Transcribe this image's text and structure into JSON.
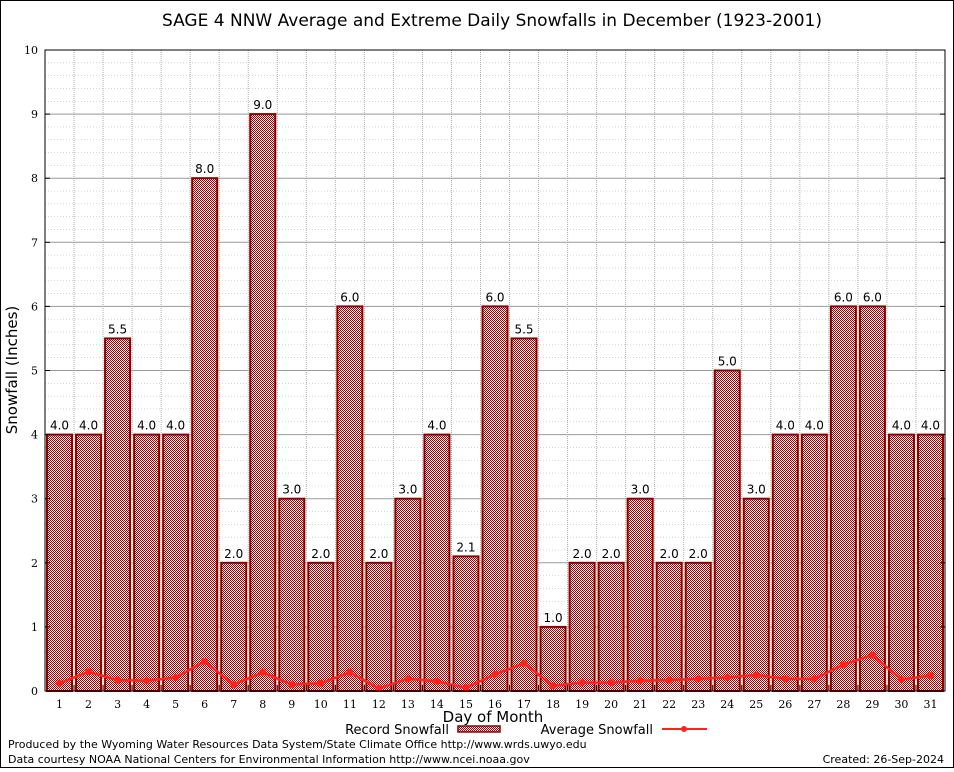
{
  "chart_data": {
    "type": "bar",
    "title": "SAGE 4 NNW Average and Extreme Daily Snowfalls in December (1923-2001)",
    "xlabel": "Day of Month",
    "ylabel": "Snowfall (Inches)",
    "ylim": [
      0,
      10
    ],
    "yticks": [
      "0",
      "1",
      "2",
      "3",
      "4",
      "5",
      "6",
      "7",
      "8",
      "9",
      "10"
    ],
    "categories": [
      "1",
      "2",
      "3",
      "4",
      "5",
      "6",
      "7",
      "8",
      "9",
      "10",
      "11",
      "12",
      "13",
      "14",
      "15",
      "16",
      "17",
      "18",
      "19",
      "20",
      "21",
      "22",
      "23",
      "24",
      "25",
      "26",
      "27",
      "28",
      "29",
      "30",
      "31"
    ],
    "series": [
      {
        "name": "Record Snowfall",
        "type": "bar",
        "color": "#8b0000",
        "values": [
          4.0,
          4.0,
          5.5,
          4.0,
          4.0,
          8.0,
          2.0,
          9.0,
          3.0,
          2.0,
          6.0,
          2.0,
          3.0,
          4.0,
          2.1,
          6.0,
          5.5,
          1.0,
          2.0,
          2.0,
          3.0,
          2.0,
          2.0,
          5.0,
          3.0,
          4.0,
          4.0,
          6.0,
          6.0,
          4.0,
          4.0
        ],
        "labels": [
          "4.0",
          "4.0",
          "5.5",
          "4.0",
          "4.0",
          "8.0",
          "2.0",
          "9.0",
          "3.0",
          "2.0",
          "6.0",
          "2.0",
          "3.0",
          "4.0",
          "2.1",
          "6.0",
          "5.5",
          "1.0",
          "2.0",
          "2.0",
          "3.0",
          "2.0",
          "2.0",
          "5.0",
          "3.0",
          "4.0",
          "4.0",
          "6.0",
          "6.0",
          "4.0",
          "4.0"
        ]
      },
      {
        "name": "Average Snowfall",
        "type": "line",
        "color": "#ff2020",
        "values": [
          0.12,
          0.3,
          0.17,
          0.16,
          0.21,
          0.46,
          0.1,
          0.29,
          0.1,
          0.12,
          0.29,
          0.04,
          0.19,
          0.15,
          0.05,
          0.26,
          0.43,
          0.08,
          0.13,
          0.13,
          0.16,
          0.17,
          0.19,
          0.21,
          0.25,
          0.19,
          0.19,
          0.41,
          0.56,
          0.18,
          0.24
        ]
      }
    ],
    "grid": true,
    "legend": "bottom-center"
  },
  "footer": {
    "line1": "Produced by the Wyoming Water Resources Data System/State Climate Office http://www.wrds.uwyo.edu",
    "line2": "Data courtesy NOAA National Centers for Environmental Information http://www.ncei.noaa.gov",
    "created": "Created: 26-Sep-2024"
  }
}
